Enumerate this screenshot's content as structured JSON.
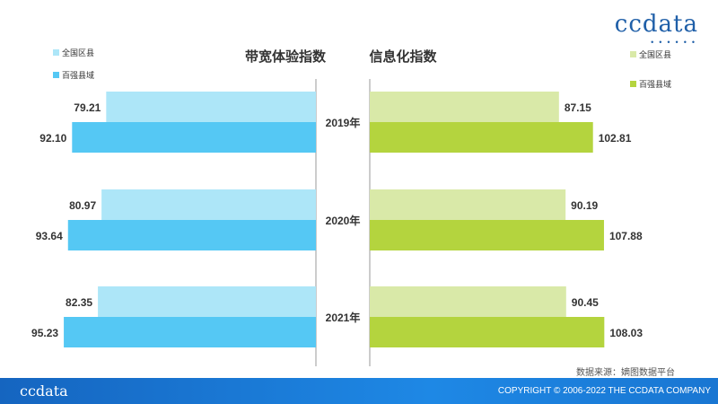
{
  "brand": {
    "logo": "ccdata",
    "copyright": "COPYRIGHT © 2006-2022  THE CCDATA COMPANY"
  },
  "source": "数据来源：嫡图数据平台",
  "colors": {
    "left_light": "#ade6f8",
    "left_dark": "#55c8f4",
    "right_light": "#d9e9a8",
    "right_dark": "#b4d43e",
    "divider": "#999999"
  },
  "chart_data": {
    "type": "bar",
    "categories": [
      "2019年",
      "2020年",
      "2021年"
    ],
    "left": {
      "title": "带宽体验指数",
      "series": [
        {
          "name": "全国区县",
          "values": [
            79.21,
            80.97,
            82.35
          ]
        },
        {
          "name": "百强县域",
          "values": [
            92.1,
            93.64,
            95.23
          ]
        }
      ]
    },
    "right": {
      "title": "信息化指数",
      "series": [
        {
          "name": "全国区县",
          "values": [
            87.15,
            90.19,
            90.45
          ]
        },
        {
          "name": "百强县域",
          "values": [
            102.81,
            107.88,
            108.03
          ]
        }
      ]
    }
  }
}
